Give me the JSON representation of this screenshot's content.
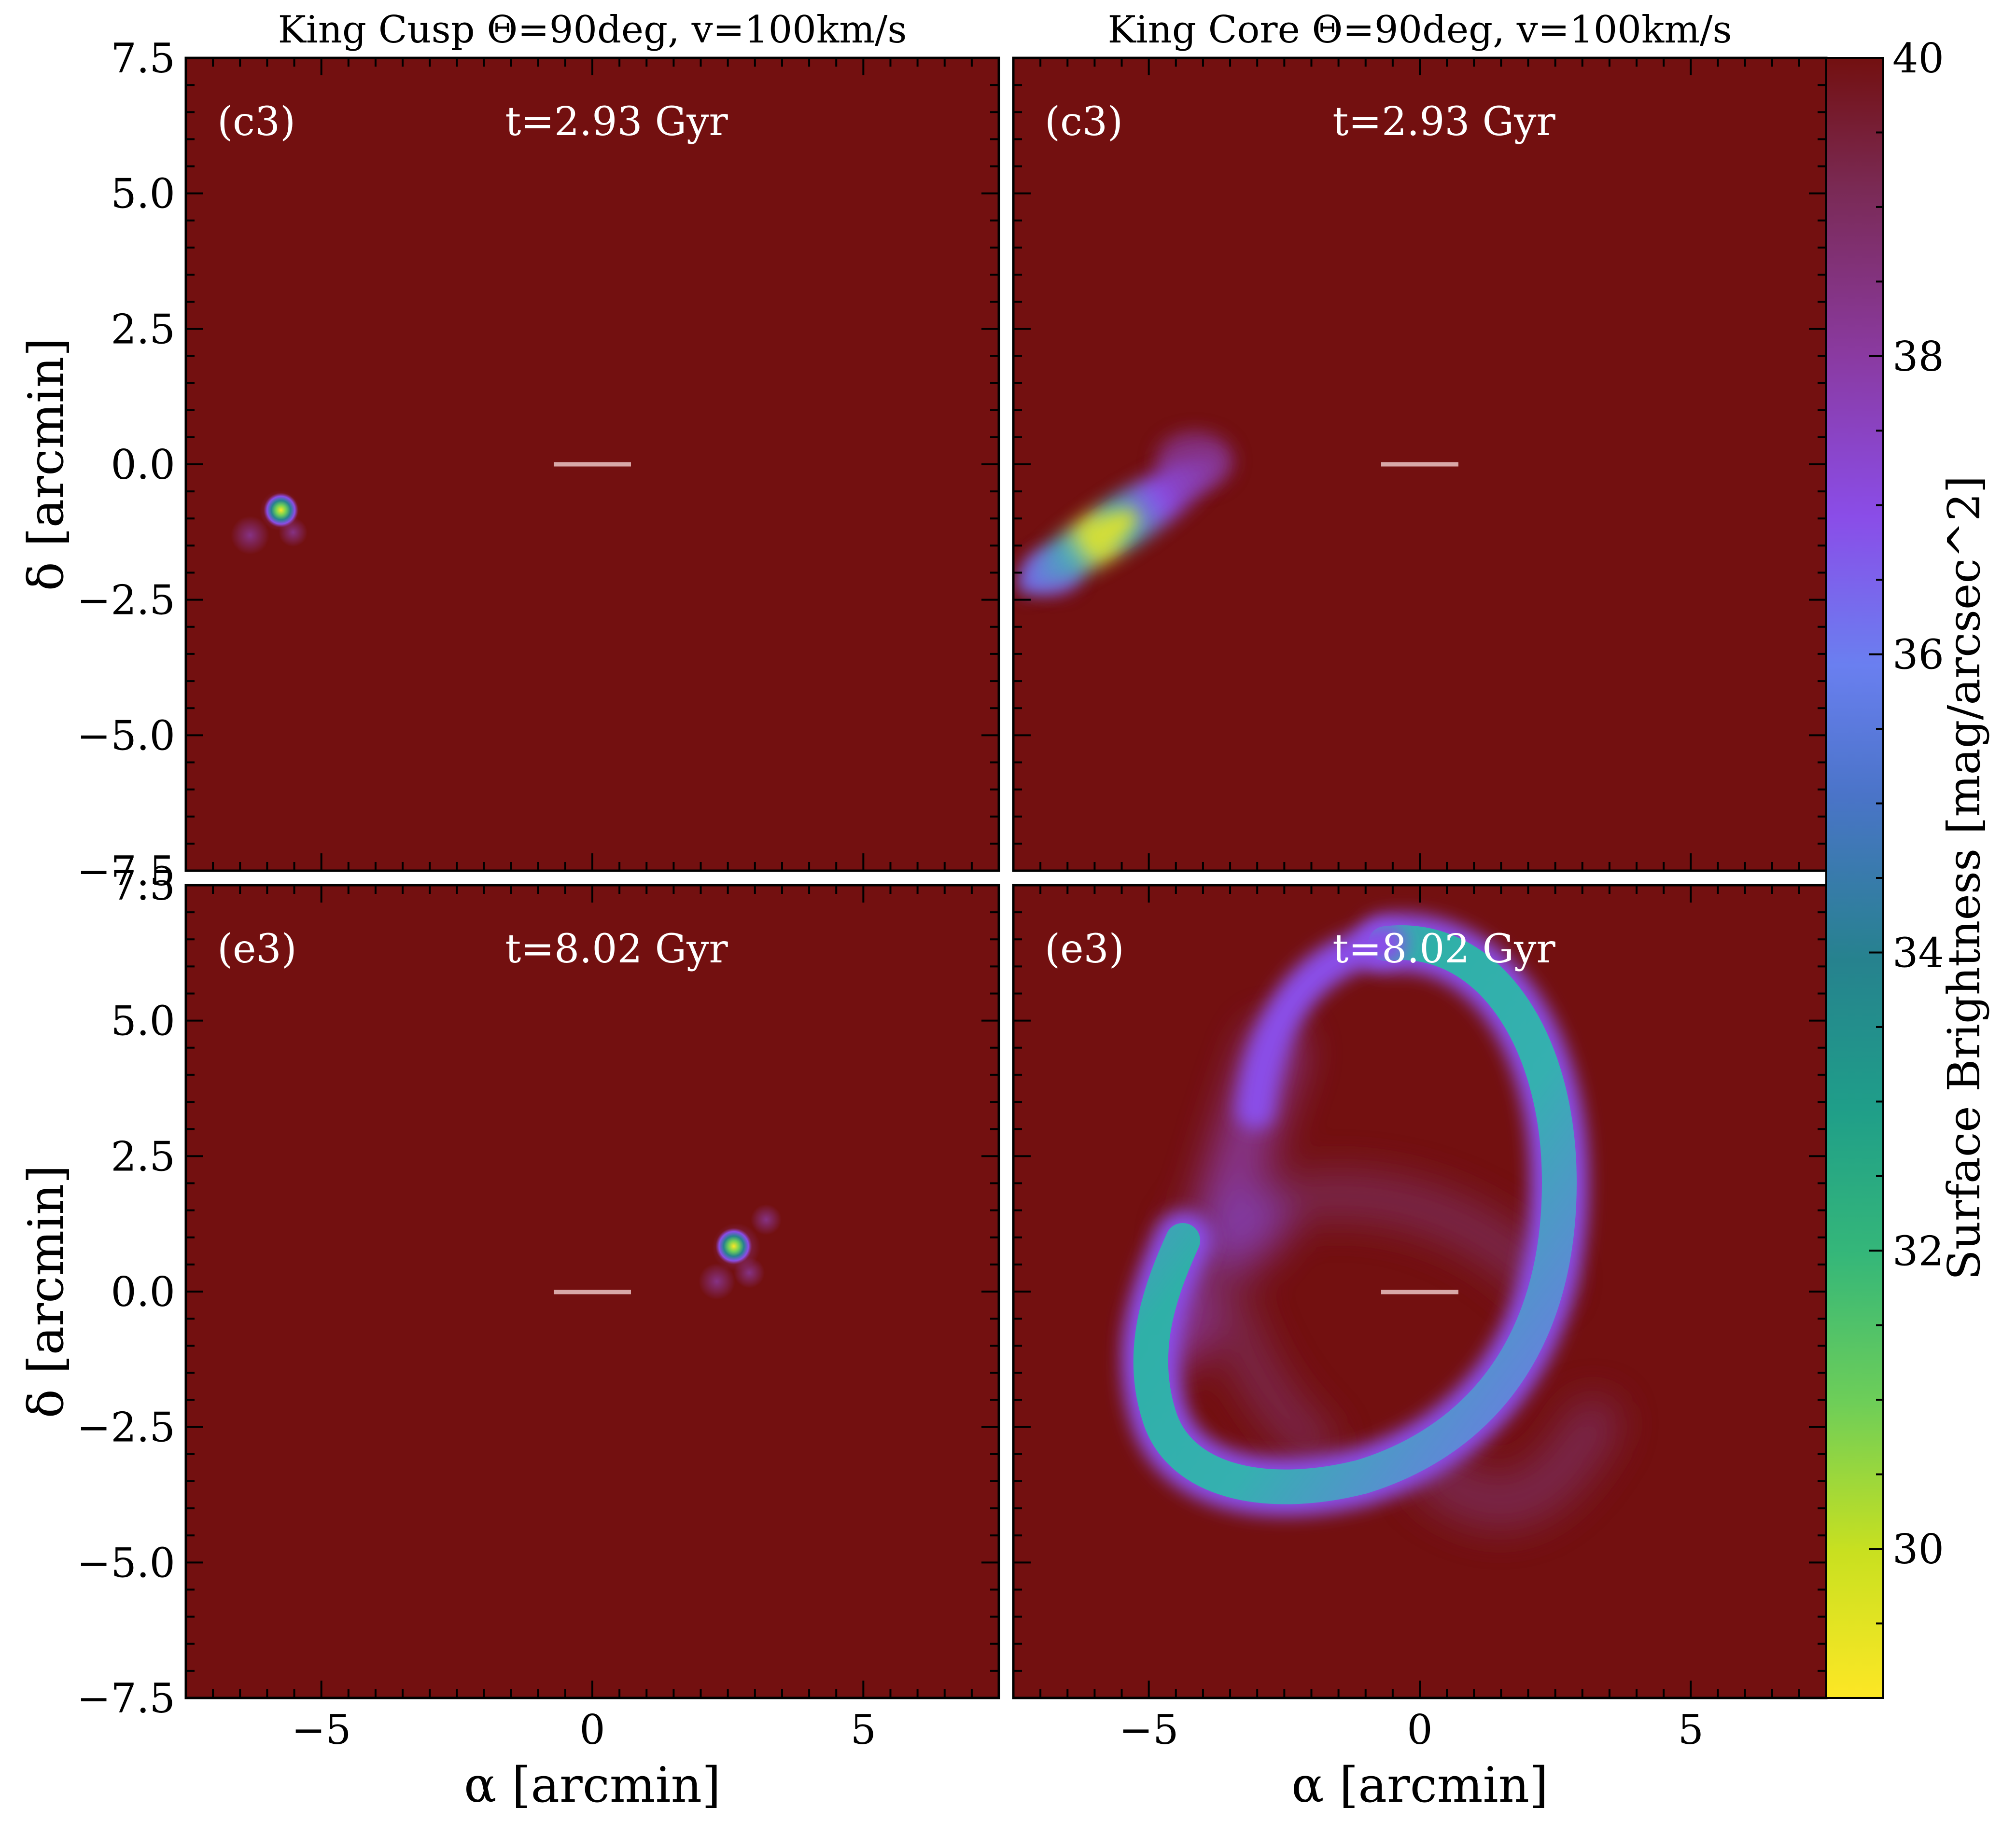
{
  "figure": {
    "panel_titles": [
      "King Cusp Θ=90deg, v=100km/s",
      "King Core Θ=90deg, v=100km/s"
    ],
    "colorbar": {
      "label": "Surface Brightness [mag/arcsec^2]",
      "ticks": [
        "30",
        "32",
        "34",
        "36",
        "38",
        "40"
      ],
      "range": [
        29,
        40
      ],
      "colors_bright_to_faint": [
        "#fde725",
        "#c8e020",
        "#6ece58",
        "#35b779",
        "#1f9e89",
        "#26828e",
        "#31688e",
        "#6a7ff0",
        "#8a4de8",
        "#8a3aa0",
        "#7a2a55",
        "#731010"
      ]
    },
    "background_color": "#731010",
    "center_marker_color": "#d8a8a8"
  },
  "chart_data": [
    {
      "type": "heatmap",
      "panel": "top-left",
      "label": "(c3)",
      "time": "t=2.93 Gyr",
      "xlim": [
        -7.5,
        7.5
      ],
      "ylim": [
        -7.5,
        7.5
      ],
      "xlabel": "",
      "ylabel": "δ [arcmin]",
      "xticks": [],
      "yticks": [
        "7.5",
        "5.0",
        "2.5",
        "0.0",
        "−2.5",
        "−5.0",
        "−7.5"
      ],
      "features": [
        {
          "kind": "blob",
          "x": -5.9,
          "y": -0.85,
          "size": 0.15,
          "peak_mag": 29.5,
          "description": "compact remnant"
        },
        {
          "kind": "blob",
          "x": -6.4,
          "y": -1.3,
          "size": 0.25,
          "peak_mag": 39.0
        },
        {
          "kind": "blob",
          "x": -5.6,
          "y": -1.25,
          "size": 0.2,
          "peak_mag": 39.0
        }
      ]
    },
    {
      "type": "heatmap",
      "panel": "top-right",
      "label": "(c3)",
      "time": "t=2.93 Gyr",
      "xlim": [
        -7.5,
        7.5
      ],
      "ylim": [
        -7.5,
        7.5
      ],
      "xlabel": "",
      "ylabel": "",
      "xticks": [],
      "yticks": [],
      "features": [
        {
          "kind": "stream",
          "x_from": -7.2,
          "y_from": -1.9,
          "x_to": -4.0,
          "y_to": 0.2,
          "peak_x": -5.8,
          "peak_y": -1.15,
          "peak_mag": 30.0
        }
      ]
    },
    {
      "type": "heatmap",
      "panel": "bottom-left",
      "label": "(e3)",
      "time": "t=8.02 Gyr",
      "xlim": [
        -7.5,
        7.5
      ],
      "ylim": [
        -7.5,
        7.5
      ],
      "xlabel": "α [arcmin]",
      "ylabel": "δ [arcmin]",
      "xticks": [
        "−5",
        "0",
        "5"
      ],
      "yticks": [
        "7.5",
        "5.0",
        "2.5",
        "0.0",
        "−2.5",
        "−5.0",
        "−7.5"
      ],
      "features": [
        {
          "kind": "blob",
          "x": 2.65,
          "y": 0.85,
          "size": 0.15,
          "peak_mag": 29.5,
          "description": "compact remnant"
        },
        {
          "kind": "blob",
          "x": 3.3,
          "y": 1.35,
          "size": 0.2,
          "peak_mag": 39.0
        },
        {
          "kind": "blob",
          "x": 3.0,
          "y": 0.35,
          "size": 0.2,
          "peak_mag": 39.0
        },
        {
          "kind": "blob",
          "x": 2.4,
          "y": 0.2,
          "size": 0.2,
          "peak_mag": 39.0
        }
      ]
    },
    {
      "type": "heatmap",
      "panel": "bottom-right",
      "label": "(e3)",
      "time": "t=8.02 Gyr",
      "xlim": [
        -7.5,
        7.5
      ],
      "ylim": [
        -7.5,
        7.5
      ],
      "xlabel": "α [arcmin]",
      "ylabel": "",
      "xticks": [
        "−5",
        "0",
        "5"
      ],
      "yticks": [],
      "features": [
        {
          "kind": "ring",
          "center_x": 0.2,
          "center_y": 1.6,
          "description": "bright tidal stream loop",
          "peak_mag": 33.0
        },
        {
          "kind": "stream",
          "description": "faint inner stream",
          "peak_mag": 38.5
        }
      ]
    }
  ]
}
